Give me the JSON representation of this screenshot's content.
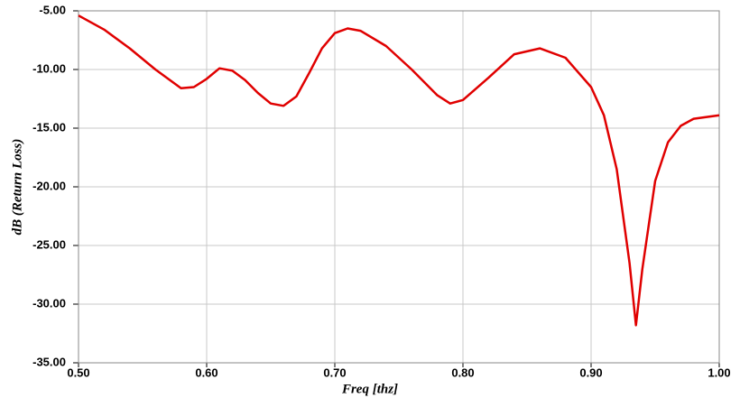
{
  "chart_data": {
    "type": "line",
    "x_label": "Freq [thz]",
    "y_label": "dB (Return Loss)",
    "x": [
      0.5,
      0.52,
      0.54,
      0.56,
      0.58,
      0.59,
      0.6,
      0.61,
      0.62,
      0.63,
      0.64,
      0.65,
      0.66,
      0.67,
      0.68,
      0.69,
      0.7,
      0.71,
      0.72,
      0.74,
      0.76,
      0.78,
      0.79,
      0.8,
      0.82,
      0.84,
      0.86,
      0.88,
      0.9,
      0.91,
      0.92,
      0.93,
      0.935,
      0.94,
      0.95,
      0.96,
      0.97,
      0.98,
      1.0
    ],
    "series": [
      {
        "color": "#e00000",
        "values": [
          -5.4,
          -6.6,
          -8.2,
          -10.0,
          -11.6,
          -11.5,
          -10.8,
          -9.9,
          -10.1,
          -10.9,
          -12.0,
          -12.9,
          -13.1,
          -12.3,
          -10.3,
          -8.2,
          -6.9,
          -6.5,
          -6.7,
          -8.0,
          -10.0,
          -12.2,
          -12.9,
          -12.6,
          -10.7,
          -8.7,
          -8.2,
          -9.0,
          -11.5,
          -13.9,
          -18.5,
          -26.5,
          -31.8,
          -27.0,
          -19.5,
          -16.2,
          -14.8,
          -14.2,
          -13.9
        ]
      }
    ],
    "xlim": [
      0.5,
      1.0
    ],
    "xticks": [
      {
        "value": 0.5,
        "label": "0.50"
      },
      {
        "value": 0.6,
        "label": "0.60"
      },
      {
        "value": 0.7,
        "label": "0.70"
      },
      {
        "value": 0.8,
        "label": "0.80"
      },
      {
        "value": 0.9,
        "label": "0.90"
      },
      {
        "value": 1.0,
        "label": "1.00"
      }
    ],
    "ylim": [
      -35,
      -5
    ],
    "yticks": [
      {
        "value": -5,
        "label": "-5.00"
      },
      {
        "value": -10,
        "label": "-10.00"
      },
      {
        "value": -15,
        "label": "-15.00"
      },
      {
        "value": -20,
        "label": "-20.00"
      },
      {
        "value": -25,
        "label": "-25.00"
      },
      {
        "value": -30,
        "label": "-30.00"
      },
      {
        "value": -35,
        "label": "-35.00"
      }
    ],
    "grid": true
  }
}
